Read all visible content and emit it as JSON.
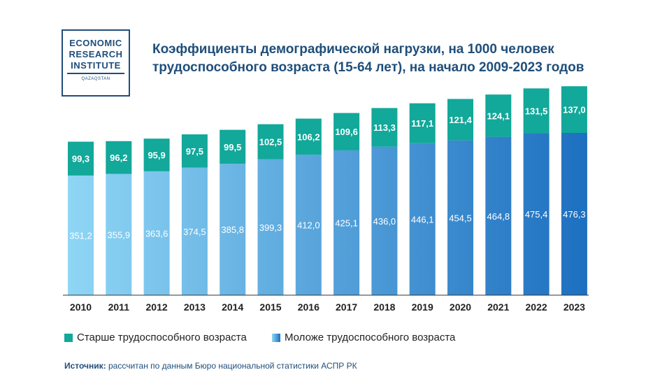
{
  "logo": {
    "line1": "ECONOMIC",
    "line2": "RESEARCH",
    "line3": "INSTITUTE",
    "line4": "QAZAQSTAN"
  },
  "title": "Коэффициенты демографической нагрузки, на 1000 человек трудоспособного возраста (15-64 лет), на начало 2009-2023 годов",
  "legend": {
    "older": "Старше трудоспособного возраста",
    "younger": "Моложе трудоспособного возраста"
  },
  "source": {
    "label": "Источник:",
    "text": "рассчитан по данным Бюро национальной статистики АСПР РК"
  },
  "colors": {
    "older": "#12a89a",
    "younger_start": "#8fd6f5",
    "younger_end": "#1d6fc0",
    "axis": "#333333"
  },
  "chart_data": {
    "type": "bar",
    "stacked": true,
    "categories": [
      "2010",
      "2011",
      "2012",
      "2013",
      "2014",
      "2015",
      "2016",
      "2017",
      "2018",
      "2019",
      "2020",
      "2021",
      "2022",
      "2023"
    ],
    "series": [
      {
        "name": "Моложе трудоспособного возраста",
        "values": [
          351.2,
          355.9,
          363.6,
          374.5,
          385.8,
          399.3,
          412.0,
          425.1,
          436.0,
          446.1,
          454.5,
          464.8,
          475.4,
          476.3
        ],
        "labels": [
          "351,2",
          "355,9",
          "363,6",
          "374,5",
          "385,8",
          "399,3",
          "412,0",
          "425,1",
          "436,0",
          "446,1",
          "454,5",
          "464,8",
          "475,4",
          "476,3"
        ]
      },
      {
        "name": "Старше трудоспособного возраста",
        "values": [
          99.3,
          96.2,
          95.9,
          97.5,
          99.5,
          102.5,
          106.2,
          109.6,
          113.3,
          117.1,
          121.4,
          124.1,
          131.5,
          137.0
        ],
        "labels": [
          "99,3",
          "96,2",
          "95,9",
          "97,5",
          "99,5",
          "102,5",
          "106,2",
          "109,6",
          "113,3",
          "117,1",
          "121,4",
          "124,1",
          "131,5",
          "137,0"
        ]
      }
    ],
    "ylim": [
      0,
      620
    ],
    "legend_position": "bottom-left",
    "grid": false
  }
}
